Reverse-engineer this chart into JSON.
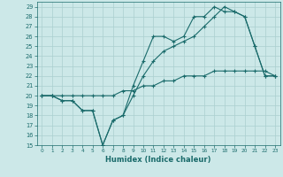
{
  "xlabel": "Humidex (Indice chaleur)",
  "bg_color": "#cce8e8",
  "grid_color": "#aacfcf",
  "line_color": "#1a6b6b",
  "xlim": [
    -0.5,
    23.5
  ],
  "ylim": [
    15,
    29.5
  ],
  "xticks": [
    0,
    1,
    2,
    3,
    4,
    5,
    6,
    7,
    8,
    9,
    10,
    11,
    12,
    13,
    14,
    15,
    16,
    17,
    18,
    19,
    20,
    21,
    22,
    23
  ],
  "yticks": [
    15,
    16,
    17,
    18,
    19,
    20,
    21,
    22,
    23,
    24,
    25,
    26,
    27,
    28,
    29
  ],
  "line1_x": [
    0,
    1,
    2,
    3,
    4,
    5,
    6,
    7,
    8,
    9,
    10,
    11,
    12,
    13,
    14,
    15,
    16,
    17,
    18,
    19,
    20,
    21,
    22,
    23
  ],
  "line1_y": [
    20,
    20,
    20,
    20,
    20,
    20,
    20,
    20,
    20.5,
    20.5,
    21,
    21,
    21.5,
    21.5,
    22,
    22,
    22,
    22.5,
    22.5,
    22.5,
    22.5,
    22.5,
    22.5,
    22
  ],
  "line2_x": [
    0,
    1,
    2,
    3,
    4,
    5,
    6,
    7,
    8,
    9,
    10,
    11,
    12,
    13,
    14,
    15,
    16,
    17,
    18,
    19,
    20,
    21,
    22,
    23
  ],
  "line2_y": [
    20,
    20,
    19.5,
    19.5,
    18.5,
    18.5,
    15,
    17.5,
    18,
    21,
    23.5,
    26,
    26,
    25.5,
    26,
    28,
    28,
    29,
    28.5,
    28.5,
    28,
    25,
    22,
    22
  ],
  "line3_x": [
    0,
    1,
    2,
    3,
    4,
    5,
    6,
    7,
    8,
    9,
    10,
    11,
    12,
    13,
    14,
    15,
    16,
    17,
    18,
    19,
    20,
    21,
    22,
    23
  ],
  "line3_y": [
    20,
    20,
    19.5,
    19.5,
    18.5,
    18.5,
    15,
    17.5,
    18,
    20,
    22,
    23.5,
    24.5,
    25,
    25.5,
    26,
    27,
    28,
    29,
    28.5,
    28,
    25,
    22,
    22
  ]
}
